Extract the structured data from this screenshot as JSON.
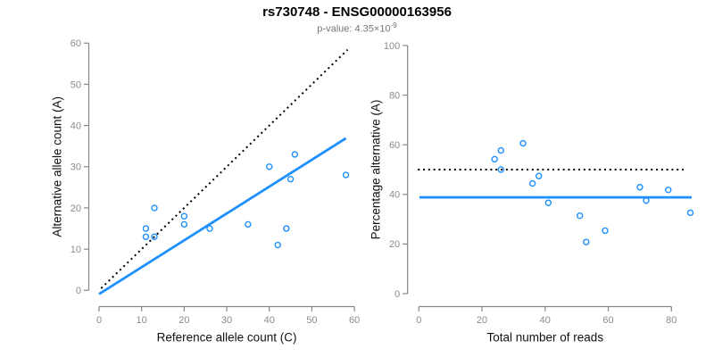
{
  "header": {
    "title": "rs730748 - ENSG00000163956",
    "subtitle_prefix": "p-value: 4.35×10",
    "subtitle_exponent": "-9"
  },
  "colors": {
    "accent_blue": "#1E90FF",
    "axis_gray": "#878787",
    "tick_label_gray": "#8c8c8c",
    "label_black": "#111111",
    "dotted_black": "#000000",
    "subtitle_gray": "#757575"
  },
  "chart_data": [
    {
      "type": "scatter",
      "name": "allele-counts-plot",
      "xlabel": "Reference allele count (C)",
      "ylabel": "Alternative allele count (A)",
      "xlim": [
        0,
        60
      ],
      "ylim": [
        0,
        60
      ],
      "xticks": [
        0,
        10,
        20,
        30,
        40,
        50,
        60
      ],
      "yticks": [
        0,
        10,
        20,
        30,
        40,
        50,
        60
      ],
      "grid": false,
      "legend": null,
      "point_color": "#1E90FF",
      "points": [
        [
          13,
          20
        ],
        [
          11,
          15
        ],
        [
          11,
          13
        ],
        [
          13,
          13
        ],
        [
          20,
          18
        ],
        [
          20,
          16
        ],
        [
          26,
          15
        ],
        [
          35,
          16
        ],
        [
          44,
          15
        ],
        [
          42,
          11
        ],
        [
          40,
          30
        ],
        [
          45,
          27
        ],
        [
          46,
          33
        ],
        [
          58,
          28
        ]
      ],
      "lines": [
        {
          "name": "identity",
          "style": "dotted",
          "color": "#000000",
          "from": [
            0.5,
            0.5
          ],
          "to": [
            58.4,
            58.4
          ]
        },
        {
          "name": "regression",
          "style": "solid",
          "color": "#1E90FF",
          "from": [
            0,
            -0.9
          ],
          "to": [
            58,
            36.9
          ]
        }
      ]
    },
    {
      "type": "scatter",
      "name": "percentage-plot",
      "xlabel": "Total number of reads",
      "ylabel": "Percentage alternative (A)",
      "xlim": [
        0,
        86
      ],
      "ylim": [
        0,
        100
      ],
      "xticks": [
        0,
        20,
        40,
        60,
        80
      ],
      "yticks": [
        0,
        20,
        40,
        60,
        80,
        100
      ],
      "grid": false,
      "legend": null,
      "point_color": "#1E90FF",
      "points": [
        [
          33,
          60.6
        ],
        [
          26,
          57.7
        ],
        [
          24,
          54.2
        ],
        [
          26,
          50.0
        ],
        [
          38,
          47.4
        ],
        [
          36,
          44.4
        ],
        [
          41,
          36.6
        ],
        [
          51,
          31.4
        ],
        [
          59,
          25.4
        ],
        [
          53,
          20.8
        ],
        [
          70,
          42.9
        ],
        [
          72,
          37.5
        ],
        [
          79,
          41.8
        ],
        [
          86,
          32.6
        ]
      ],
      "lines": [
        {
          "name": "expected-50pct",
          "style": "dotted",
          "color": "#000000",
          "from": [
            -0.3,
            50
          ],
          "to": [
            84.5,
            50
          ]
        },
        {
          "name": "mean-fit",
          "style": "solid",
          "color": "#1E90FF",
          "from": [
            0.2,
            38.8
          ],
          "to": [
            86.4,
            38.8
          ]
        }
      ]
    }
  ]
}
